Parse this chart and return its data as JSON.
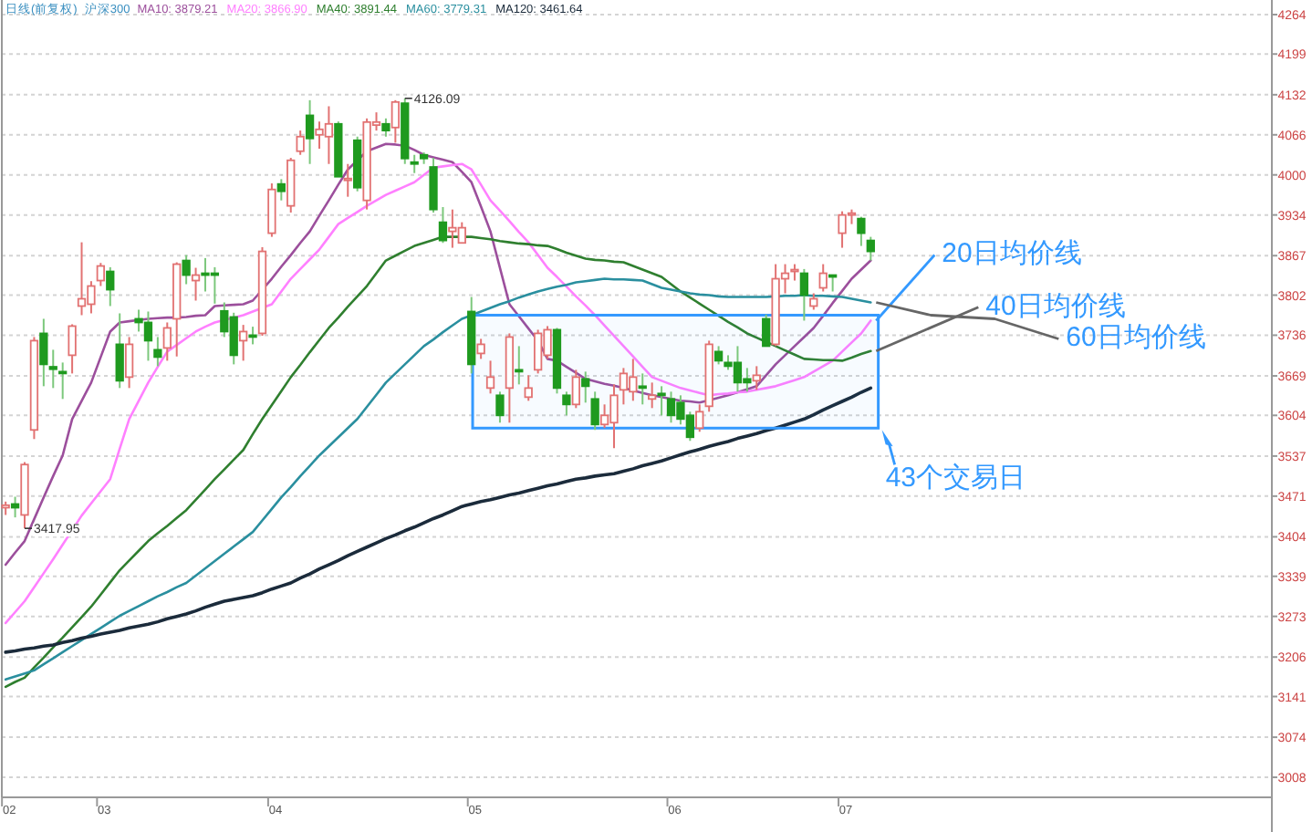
{
  "chart_data": {
    "type": "candlestick",
    "title": "日线(前复权)",
    "subtitle": "沪深300",
    "categories": [
      "02",
      null,
      null,
      null,
      null,
      null,
      null,
      null,
      null,
      null,
      "03",
      null,
      null,
      null,
      null,
      null,
      null,
      null,
      null,
      null,
      null,
      null,
      null,
      null,
      null,
      null,
      null,
      null,
      "04",
      null,
      null,
      null,
      null,
      null,
      null,
      null,
      null,
      null,
      null,
      null,
      null,
      null,
      null,
      null,
      null,
      null,
      null,
      null,
      null,
      "05",
      null,
      null,
      null,
      null,
      null,
      null,
      null,
      null,
      null,
      null,
      null,
      null,
      null,
      null,
      null,
      null,
      null,
      null,
      null,
      null,
      "06",
      null,
      null,
      null,
      null,
      null,
      null,
      null,
      null,
      null,
      null,
      null,
      null,
      null,
      null,
      null,
      null,
      null,
      "07",
      null,
      null,
      null
    ],
    "ohlc": [
      [
        3452,
        3462,
        3440,
        3456
      ],
      [
        3458,
        3470,
        3436,
        3452
      ],
      [
        3440,
        3527,
        3417.95,
        3523
      ],
      [
        3580,
        3733,
        3565,
        3727
      ],
      [
        3739,
        3763,
        3652,
        3688
      ],
      [
        3684,
        3712,
        3649,
        3680
      ],
      [
        3676,
        3691,
        3631,
        3674
      ],
      [
        3703,
        3754,
        3673,
        3751
      ],
      [
        3784,
        3889,
        3769,
        3796
      ],
      [
        3787,
        3825,
        3772,
        3817
      ],
      [
        3826,
        3855,
        3817,
        3850
      ],
      [
        3841,
        3848,
        3784,
        3811
      ],
      [
        3721,
        3772,
        3649,
        3661
      ],
      [
        3667,
        3733,
        3649,
        3721
      ],
      [
        3763,
        3778,
        3742,
        3757
      ],
      [
        3757,
        3775,
        3694,
        3727
      ],
      [
        3712,
        3733,
        3685,
        3700
      ],
      [
        3715,
        3757,
        3694,
        3748
      ],
      [
        3763,
        3856,
        3701,
        3853
      ],
      [
        3859,
        3868,
        3820,
        3835
      ],
      [
        3826,
        3847,
        3793,
        3835
      ],
      [
        3838,
        3863,
        3808,
        3835
      ],
      [
        3838,
        3848,
        3788,
        3836
      ],
      [
        3776,
        3790,
        3733,
        3742
      ],
      [
        3766,
        3773,
        3688,
        3703
      ],
      [
        3727,
        3753,
        3694,
        3742
      ],
      [
        3736,
        3750,
        3721,
        3733
      ],
      [
        3739,
        3881,
        3735,
        3874
      ],
      [
        3904,
        3986,
        3898,
        3976
      ],
      [
        3985,
        3993,
        3958,
        3973
      ],
      [
        3949,
        4028,
        3938,
        4024
      ],
      [
        4039,
        4073,
        4033,
        4063
      ],
      [
        4098,
        4123,
        4018,
        4060
      ],
      [
        4066,
        4088,
        4043,
        4075
      ],
      [
        4063,
        4113,
        4018,
        4084
      ],
      [
        4084,
        4088,
        3997,
        3997
      ],
      [
        3991,
        4018,
        3964,
        3994
      ],
      [
        4057,
        4063,
        3973,
        3979
      ],
      [
        3958,
        4093,
        3943,
        4087
      ],
      [
        4082,
        4103,
        4073,
        4087
      ],
      [
        4084,
        4093,
        4063,
        4073
      ],
      [
        4078,
        4123,
        4053,
        4120
      ],
      [
        4118,
        4126.09,
        4018,
        4027
      ],
      [
        4021,
        4033,
        4003,
        4018
      ],
      [
        4033,
        4037,
        4018,
        4027
      ],
      [
        4013,
        4028,
        3938,
        3943
      ],
      [
        3922,
        3947,
        3888,
        3892
      ],
      [
        3907,
        3943,
        3880,
        3913
      ],
      [
        3888,
        3922,
        3888,
        3913
      ],
      [
        3775,
        3799,
        3673,
        3688
      ],
      [
        3706,
        3730,
        3697,
        3721
      ],
      [
        3649,
        3694,
        3640,
        3667
      ],
      [
        3637,
        3643,
        3592,
        3604
      ],
      [
        3649,
        3739,
        3592,
        3733
      ],
      [
        3679,
        3718,
        3655,
        3676
      ],
      [
        3634,
        3670,
        3628,
        3649
      ],
      [
        3679,
        3745,
        3673,
        3739
      ],
      [
        3703,
        3751,
        3697,
        3745
      ],
      [
        3745,
        3748,
        3640,
        3649
      ],
      [
        3637,
        3643,
        3604,
        3622
      ],
      [
        3622,
        3679,
        3616,
        3667
      ],
      [
        3664,
        3676,
        3625,
        3652
      ],
      [
        3631,
        3643,
        3580,
        3589
      ],
      [
        3589,
        3622,
        3583,
        3604
      ],
      [
        3592,
        3655,
        3550,
        3637
      ],
      [
        3646,
        3682,
        3622,
        3673
      ],
      [
        3643,
        3697,
        3628,
        3667
      ],
      [
        3652,
        3673,
        3622,
        3649
      ],
      [
        3631,
        3658,
        3616,
        3637
      ],
      [
        3640,
        3652,
        3604,
        3637
      ],
      [
        3631,
        3643,
        3592,
        3604
      ],
      [
        3625,
        3637,
        3589,
        3598
      ],
      [
        3604,
        3610,
        3562,
        3568
      ],
      [
        3583,
        3622,
        3577,
        3610
      ],
      [
        3619,
        3727,
        3610,
        3721
      ],
      [
        3709,
        3718,
        3688,
        3694
      ],
      [
        3691,
        3703,
        3679,
        3685
      ],
      [
        3691,
        3718,
        3643,
        3658
      ],
      [
        3664,
        3682,
        3643,
        3658
      ],
      [
        3661,
        3685,
        3646,
        3670
      ],
      [
        3763,
        3770,
        3718,
        3718
      ],
      [
        3721,
        3853,
        3718,
        3829
      ],
      [
        3829,
        3853,
        3805,
        3838
      ],
      [
        3841,
        3853,
        3826,
        3844
      ],
      [
        3838,
        3845,
        3760,
        3802
      ],
      [
        3784,
        3805,
        3778,
        3796
      ],
      [
        3814,
        3853,
        3808,
        3838
      ],
      [
        3835,
        3835,
        3808,
        3832
      ],
      [
        3904,
        3940,
        3880,
        3934
      ],
      [
        3934,
        3943,
        3919,
        3937
      ],
      [
        3928,
        3931,
        3883,
        3904
      ],
      [
        3892,
        3898,
        3859,
        3874
      ]
    ],
    "series": [
      {
        "type": "line",
        "name": "MA10: 3879.21",
        "color": "#9c4f9c",
        "values": [
          3358,
          3378,
          3397,
          3433,
          3469,
          3504,
          3538,
          3598,
          3628,
          3658,
          3700,
          3742,
          3757,
          3759,
          3761,
          3763,
          3764,
          3765,
          3765,
          3766,
          3768,
          3769,
          3784,
          3785,
          3786,
          3787,
          3793,
          3811,
          3829,
          3849,
          3868,
          3888,
          3907,
          3933,
          3958,
          3984,
          4009,
          4024,
          4039,
          4045,
          4051,
          4050,
          4048,
          4041,
          4033,
          4029,
          4025,
          4021,
          4005,
          3988,
          3948,
          3907,
          3847,
          3787,
          3767,
          3747,
          3727,
          3697,
          3694,
          3684,
          3674,
          3664,
          3660,
          3656,
          3653,
          3649,
          3645,
          3641,
          3637,
          3634,
          3631,
          3628,
          3627,
          3625,
          3629,
          3633,
          3637,
          3642,
          3647,
          3652,
          3670,
          3688,
          3703,
          3718,
          3733,
          3748,
          3768,
          3789,
          3809,
          3829,
          3844,
          3859
        ]
      },
      {
        "type": "line",
        "name": "MA20: 3866.90",
        "color": "#ff80ff",
        "values": [
          3262,
          3280,
          3298,
          3321,
          3344,
          3367,
          3391,
          3415,
          3439,
          3459,
          3479,
          3499,
          3549,
          3598,
          3628,
          3658,
          3684,
          3709,
          3720,
          3731,
          3742,
          3750,
          3757,
          3761,
          3765,
          3769,
          3775,
          3781,
          3787,
          3808,
          3829,
          3845,
          3861,
          3877,
          3898,
          3919,
          3929,
          3939,
          3949,
          3958,
          3967,
          3974,
          3981,
          3988,
          4000,
          4012,
          4014,
          4016,
          4018,
          4009,
          3984,
          3958,
          3941,
          3924,
          3906,
          3889,
          3868,
          3847,
          3832,
          3816,
          3800,
          3785,
          3769,
          3752,
          3735,
          3718,
          3701,
          3684,
          3667,
          3661,
          3655,
          3649,
          3645,
          3641,
          3637,
          3639,
          3640,
          3642,
          3643,
          3646,
          3649,
          3652,
          3657,
          3662,
          3667,
          3676,
          3685,
          3694,
          3709,
          3724,
          3739,
          3760
        ]
      },
      {
        "type": "line",
        "name": "MA40: 3891.44",
        "color": "#2f7f2f",
        "values": [
          3157,
          3165,
          3172,
          3189,
          3205,
          3222,
          3238,
          3255,
          3272,
          3289,
          3309,
          3329,
          3349,
          3365,
          3381,
          3397,
          3410,
          3422,
          3435,
          3448,
          3465,
          3482,
          3499,
          3515,
          3531,
          3547,
          3573,
          3598,
          3621,
          3644,
          3667,
          3687,
          3708,
          3728,
          3748,
          3765,
          3783,
          3800,
          3817,
          3838,
          3859,
          3867,
          3875,
          3883,
          3888,
          3893,
          3898,
          3898,
          3898,
          3898,
          3896,
          3894,
          3891,
          3889,
          3887,
          3886,
          3884,
          3883,
          3878,
          3872,
          3867,
          3862,
          3860,
          3859,
          3857,
          3856,
          3850,
          3844,
          3838,
          3832,
          3820,
          3808,
          3798,
          3788,
          3778,
          3768,
          3758,
          3749,
          3739,
          3732,
          3725,
          3718,
          3711,
          3704,
          3697,
          3696,
          3695,
          3695,
          3694,
          3699,
          3705,
          3710
        ]
      },
      {
        "type": "line",
        "name": "MA60: 3779.31",
        "color": "#2a8f9f",
        "values": [
          3169,
          3174,
          3179,
          3184,
          3194,
          3204,
          3214,
          3224,
          3234,
          3244,
          3254,
          3264,
          3274,
          3282,
          3290,
          3298,
          3306,
          3313,
          3321,
          3328,
          3340,
          3352,
          3364,
          3376,
          3388,
          3400,
          3412,
          3431,
          3450,
          3469,
          3486,
          3504,
          3521,
          3538,
          3553,
          3568,
          3583,
          3598,
          3618,
          3638,
          3658,
          3673,
          3688,
          3703,
          3718,
          3729,
          3741,
          3752,
          3763,
          3769,
          3775,
          3781,
          3787,
          3792,
          3798,
          3803,
          3808,
          3812,
          3816,
          3819,
          3823,
          3825,
          3827,
          3829,
          3828,
          3828,
          3827,
          3826,
          3820,
          3814,
          3811,
          3808,
          3805,
          3803,
          3802,
          3800,
          3799,
          3799,
          3799,
          3799,
          3799,
          3800,
          3801,
          3801,
          3802,
          3801,
          3801,
          3800,
          3799,
          3796,
          3793,
          3790
        ]
      },
      {
        "type": "line",
        "name": "MA120: 3461.64",
        "color": "#1b2b3b",
        "values": [
          3214,
          3216,
          3219,
          3221,
          3224,
          3226,
          3230,
          3233,
          3237,
          3240,
          3244,
          3247,
          3250,
          3254,
          3257,
          3260,
          3264,
          3269,
          3273,
          3277,
          3282,
          3288,
          3293,
          3298,
          3301,
          3304,
          3307,
          3312,
          3318,
          3323,
          3328,
          3336,
          3343,
          3351,
          3358,
          3365,
          3373,
          3380,
          3387,
          3394,
          3401,
          3407,
          3414,
          3420,
          3427,
          3434,
          3440,
          3447,
          3454,
          3458,
          3462,
          3465,
          3469,
          3473,
          3476,
          3480,
          3484,
          3488,
          3491,
          3495,
          3499,
          3501,
          3504,
          3506,
          3508,
          3512,
          3516,
          3521,
          3525,
          3529,
          3534,
          3539,
          3544,
          3548,
          3553,
          3557,
          3561,
          3566,
          3570,
          3574,
          3579,
          3583,
          3588,
          3593,
          3598,
          3605,
          3613,
          3620,
          3627,
          3634,
          3642,
          3649
        ]
      }
    ],
    "ylim": [
      2975,
      4288
    ],
    "yticks": [
      4264,
      4199,
      4132,
      4066,
      4000,
      3934,
      3867,
      3802,
      3736,
      3669,
      3604,
      3537,
      3471,
      3404,
      3339,
      3273,
      3206,
      3141,
      3074,
      3008
    ],
    "grid": "y",
    "legend": "top left",
    "bands": [
      {
        "axis": "y",
        "from": 3583,
        "to": 3769,
        "color": "#3399ff"
      }
    ],
    "annotations": [
      "20日均价线",
      "40日均价线",
      "60日均价线",
      "4126.09",
      "3417.95",
      "43个交易日"
    ]
  }
}
